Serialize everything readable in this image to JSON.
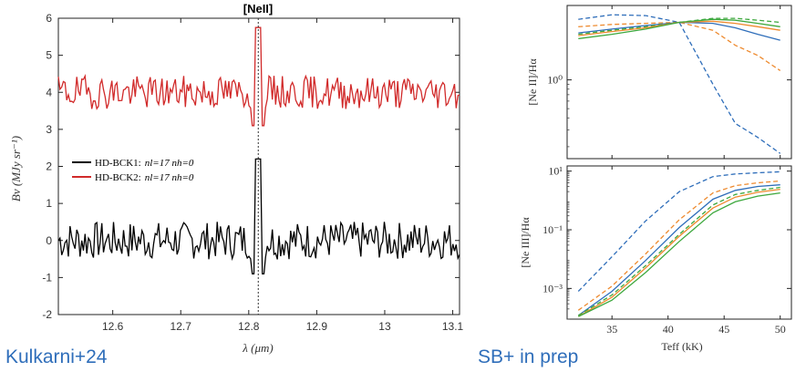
{
  "captions": {
    "left": "Kulkarni+24",
    "right": "SB+ in prep",
    "color": "#2F6EBA"
  },
  "chart_data": [
    {
      "type": "line",
      "title": "[NeII]",
      "xlabel": "λ (μm)",
      "ylabel": "Bν (MJy sr⁻¹)",
      "xlim": [
        12.52,
        13.11
      ],
      "ylim": [
        -2,
        6
      ],
      "xticks": [
        "12.6",
        "12.7",
        "12.8",
        "12.9",
        "13"
      ],
      "xtick_values": [
        12.6,
        12.7,
        12.8,
        12.9,
        13.0
      ],
      "xtick_last": "13.1",
      "yticks": [
        "-2",
        "-1",
        "0",
        "1",
        "2",
        "3",
        "4",
        "5",
        "6"
      ],
      "yticks_values": [
        -2,
        -1,
        0,
        1,
        2,
        3,
        4,
        5,
        6
      ],
      "vline_x": 12.814,
      "legend": {
        "placement": "center-left",
        "entries": [
          {
            "label": "HD-BCK1:",
            "params": "nl=17 nh=0",
            "color": "#000000"
          },
          {
            "label": "HD-BCK2:",
            "params": "nl=17 nh=0",
            "color": "#D12A2A"
          }
        ]
      },
      "series": [
        {
          "name": "HD-BCK1: nl=17 nh=0",
          "color": "#000000",
          "baseline": 0.0,
          "amplitude": 0.32,
          "peak": 2.2,
          "seed": 7
        },
        {
          "name": "HD-BCK2: nl=17 nh=0",
          "color": "#D12A2A",
          "baseline": 4.0,
          "amplitude": 0.28,
          "peak": 5.75,
          "seed": 19
        }
      ]
    },
    {
      "type": "line",
      "ylabel": "[Ne II]/Hα",
      "yscale": "log",
      "ylim": [
        0.15,
        6.0
      ],
      "ytick_label": "10⁰",
      "ytick_value": 1,
      "xlim": [
        31,
        51
      ],
      "series": [
        {
          "style": "dashed",
          "color": "#2F6EBA",
          "x": [
            32,
            35,
            38,
            41,
            44,
            46,
            48,
            50
          ],
          "y": [
            4.3,
            4.8,
            4.7,
            4.0,
            0.9,
            0.35,
            0.25,
            0.17
          ]
        },
        {
          "style": "dashed",
          "color": "#EE8A2E",
          "x": [
            32,
            35,
            38,
            41,
            44,
            46,
            48,
            50
          ],
          "y": [
            3.6,
            3.8,
            3.9,
            4.0,
            3.3,
            2.3,
            1.8,
            1.25
          ]
        },
        {
          "style": "solid",
          "color": "#2F6EBA",
          "x": [
            32,
            35,
            38,
            41,
            44,
            46,
            48,
            50
          ],
          "y": [
            3.1,
            3.4,
            3.7,
            4.0,
            3.9,
            3.5,
            3.0,
            2.6
          ]
        },
        {
          "style": "dashed",
          "color": "#3DA83D",
          "x": [
            32,
            35,
            38,
            41,
            44,
            46,
            48,
            50
          ],
          "y": [
            3.0,
            3.3,
            3.6,
            4.0,
            4.4,
            4.4,
            4.2,
            4.0
          ]
        },
        {
          "style": "solid",
          "color": "#EE8A2E",
          "x": [
            32,
            35,
            38,
            41,
            44,
            46,
            48,
            50
          ],
          "y": [
            2.9,
            3.2,
            3.5,
            4.0,
            4.1,
            3.9,
            3.6,
            3.3
          ]
        },
        {
          "style": "solid",
          "color": "#3DA83D",
          "x": [
            32,
            35,
            38,
            41,
            44,
            46,
            48,
            50
          ],
          "y": [
            2.7,
            3.0,
            3.4,
            4.0,
            4.3,
            4.2,
            3.9,
            3.6
          ]
        }
      ]
    },
    {
      "type": "line",
      "ylabel": "[Ne III]/Hα",
      "xlabel": "Teff (kK)",
      "yscale": "log",
      "ylim": [
        9e-05,
        15
      ],
      "yticks": [
        "10¹",
        "10⁻¹",
        "10⁻³"
      ],
      "ytick_values": [
        10,
        0.1,
        0.001
      ],
      "xlim": [
        31,
        51
      ],
      "xticks": [
        "35",
        "40",
        "45",
        "50"
      ],
      "xtick_values": [
        35,
        40,
        45,
        50
      ],
      "series": [
        {
          "style": "dashed",
          "color": "#2F6EBA",
          "x": [
            32,
            35,
            38,
            41,
            44,
            46,
            48,
            50
          ],
          "y": [
            0.0008,
            0.012,
            0.2,
            2.0,
            6.5,
            8.0,
            8.8,
            9.5
          ]
        },
        {
          "style": "dashed",
          "color": "#EE8A2E",
          "x": [
            32,
            35,
            38,
            41,
            44,
            46,
            48,
            50
          ],
          "y": [
            0.00018,
            0.0012,
            0.015,
            0.22,
            1.8,
            3.2,
            4.0,
            4.6
          ]
        },
        {
          "style": "solid",
          "color": "#2F6EBA",
          "x": [
            32,
            35,
            38,
            41,
            44,
            46,
            48,
            50
          ],
          "y": [
            0.00012,
            0.0008,
            0.009,
            0.12,
            1.1,
            2.2,
            3.0,
            3.4
          ]
        },
        {
          "style": "dashed",
          "color": "#3DA83D",
          "x": [
            32,
            35,
            38,
            41,
            44,
            46,
            48,
            50
          ],
          "y": [
            0.00012,
            0.0006,
            0.006,
            0.07,
            0.7,
            1.6,
            2.2,
            2.8
          ]
        },
        {
          "style": "solid",
          "color": "#EE8A2E",
          "x": [
            32,
            35,
            38,
            41,
            44,
            46,
            48,
            50
          ],
          "y": [
            0.00011,
            0.0005,
            0.005,
            0.06,
            0.55,
            1.3,
            1.9,
            2.4
          ]
        },
        {
          "style": "solid",
          "color": "#3DA83D",
          "x": [
            32,
            35,
            38,
            41,
            44,
            46,
            48,
            50
          ],
          "y": [
            0.00011,
            0.0004,
            0.0035,
            0.04,
            0.38,
            0.9,
            1.4,
            1.8
          ]
        }
      ]
    }
  ]
}
